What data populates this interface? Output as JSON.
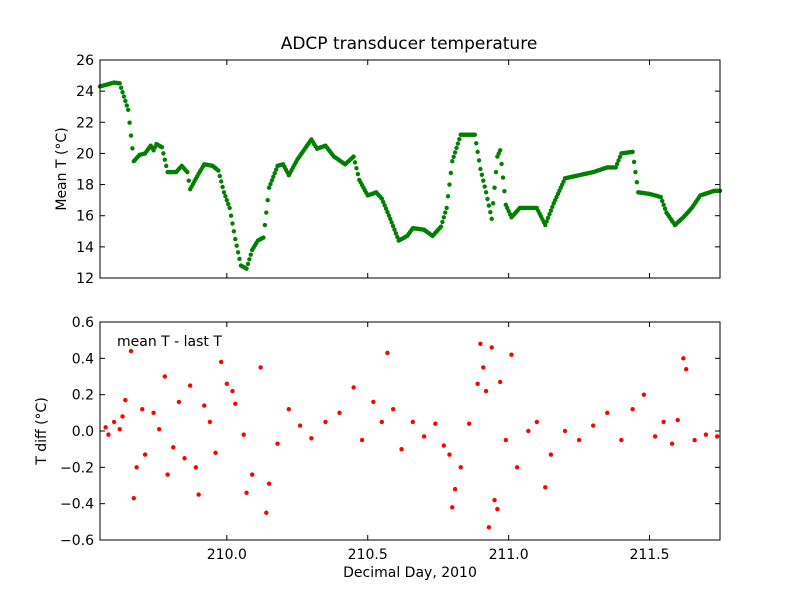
{
  "chart_data": [
    {
      "type": "scatter",
      "title": "ADCP transducer temperature",
      "ylabel": "Mean T (°C)",
      "xlabel": "",
      "xlim": [
        209.55,
        211.75
      ],
      "ylim": [
        12,
        26
      ],
      "yticks": [
        "12",
        "14",
        "16",
        "18",
        "20",
        "22",
        "24",
        "26"
      ],
      "ytick_values": [
        12,
        14,
        16,
        18,
        20,
        22,
        24,
        26
      ],
      "xtick_values": [
        210.0,
        210.5,
        211.0,
        211.5
      ],
      "grid": false,
      "marker_color": "#008000",
      "series": [
        {
          "anchors": [
            [
              209.55,
              24.3
            ],
            [
              209.6,
              24.55
            ],
            [
              209.62,
              24.5
            ],
            [
              209.65,
              22.8
            ],
            [
              209.67,
              19.5
            ],
            [
              209.69,
              19.9
            ],
            [
              209.71,
              20.0
            ],
            [
              209.73,
              20.5
            ],
            [
              209.74,
              20.2
            ],
            [
              209.75,
              20.6
            ],
            [
              209.77,
              20.4
            ],
            [
              209.79,
              18.8
            ],
            [
              209.82,
              18.8
            ],
            [
              209.84,
              19.2
            ],
            [
              209.86,
              18.8
            ],
            [
              209.87,
              17.7
            ],
            [
              209.9,
              18.7
            ],
            [
              209.92,
              19.3
            ],
            [
              209.95,
              19.2
            ],
            [
              209.97,
              18.9
            ],
            [
              209.99,
              17.5
            ],
            [
              210.01,
              16.5
            ],
            [
              210.03,
              14.5
            ],
            [
              210.05,
              12.8
            ],
            [
              210.07,
              12.6
            ],
            [
              210.09,
              13.8
            ],
            [
              210.11,
              14.4
            ],
            [
              210.13,
              14.6
            ],
            [
              210.15,
              17.8
            ],
            [
              210.18,
              19.2
            ],
            [
              210.2,
              19.3
            ],
            [
              210.22,
              18.6
            ],
            [
              210.25,
              19.6
            ],
            [
              210.3,
              20.9
            ],
            [
              210.32,
              20.3
            ],
            [
              210.35,
              20.5
            ],
            [
              210.38,
              19.8
            ],
            [
              210.42,
              19.3
            ],
            [
              210.45,
              19.8
            ],
            [
              210.47,
              18.3
            ],
            [
              210.5,
              17.3
            ],
            [
              210.53,
              17.5
            ],
            [
              210.55,
              17.1
            ],
            [
              210.58,
              15.8
            ],
            [
              210.61,
              14.4
            ],
            [
              210.64,
              14.7
            ],
            [
              210.66,
              15.2
            ],
            [
              210.7,
              15.1
            ],
            [
              210.73,
              14.7
            ],
            [
              210.76,
              15.3
            ],
            [
              210.78,
              16.5
            ],
            [
              210.8,
              19.5
            ],
            [
              210.83,
              21.2
            ],
            [
              210.88,
              21.2
            ],
            [
              210.9,
              19.0
            ],
            [
              210.92,
              17.5
            ],
            [
              210.94,
              15.8
            ],
            [
              210.96,
              19.8
            ],
            [
              210.97,
              20.2
            ],
            [
              210.99,
              16.7
            ],
            [
              211.01,
              15.9
            ],
            [
              211.04,
              16.5
            ],
            [
              211.1,
              16.5
            ],
            [
              211.13,
              15.4
            ],
            [
              211.16,
              16.8
            ],
            [
              211.2,
              18.4
            ],
            [
              211.25,
              18.6
            ],
            [
              211.3,
              18.8
            ],
            [
              211.35,
              19.1
            ],
            [
              211.38,
              19.1
            ],
            [
              211.4,
              20.0
            ],
            [
              211.44,
              20.1
            ],
            [
              211.46,
              17.5
            ],
            [
              211.5,
              17.4
            ],
            [
              211.52,
              17.3
            ],
            [
              211.54,
              17.2
            ],
            [
              211.56,
              16.2
            ],
            [
              211.59,
              15.4
            ],
            [
              211.62,
              15.9
            ],
            [
              211.65,
              16.5
            ],
            [
              211.68,
              17.3
            ],
            [
              211.73,
              17.6
            ],
            [
              211.75,
              17.6
            ]
          ]
        }
      ]
    },
    {
      "type": "scatter",
      "title": "",
      "ylabel": "T diff (°C)",
      "xlabel": "Decimal Day, 2010",
      "annotation": "mean T - last T",
      "xlim": [
        209.55,
        211.75
      ],
      "ylim": [
        -0.6,
        0.6
      ],
      "yticks": [
        "−0.6",
        "−0.4",
        "−0.2",
        "0.0",
        "0.2",
        "0.4",
        "0.6"
      ],
      "ytick_values": [
        -0.6,
        -0.4,
        -0.2,
        0.0,
        0.2,
        0.4,
        0.6
      ],
      "xticks": [
        "210.0",
        "210.5",
        "211.0",
        "211.5"
      ],
      "xtick_values": [
        210.0,
        210.5,
        211.0,
        211.5
      ],
      "grid": false,
      "marker_color": "#ff0000",
      "series": [
        {
          "points": [
            [
              209.57,
              0.02
            ],
            [
              209.58,
              -0.02
            ],
            [
              209.6,
              0.05
            ],
            [
              209.62,
              0.01
            ],
            [
              209.63,
              0.08
            ],
            [
              209.64,
              0.17
            ],
            [
              209.66,
              0.44
            ],
            [
              209.67,
              -0.37
            ],
            [
              209.68,
              -0.2
            ],
            [
              209.7,
              0.12
            ],
            [
              209.71,
              -0.13
            ],
            [
              209.74,
              0.1
            ],
            [
              209.76,
              0.01
            ],
            [
              209.78,
              0.3
            ],
            [
              209.79,
              -0.24
            ],
            [
              209.81,
              -0.09
            ],
            [
              209.83,
              0.16
            ],
            [
              209.85,
              -0.15
            ],
            [
              209.87,
              0.25
            ],
            [
              209.89,
              -0.2
            ],
            [
              209.9,
              -0.35
            ],
            [
              209.92,
              0.14
            ],
            [
              209.94,
              0.05
            ],
            [
              209.96,
              -0.12
            ],
            [
              209.98,
              0.38
            ],
            [
              210.0,
              0.26
            ],
            [
              210.02,
              0.22
            ],
            [
              210.03,
              0.15
            ],
            [
              210.06,
              -0.02
            ],
            [
              210.07,
              -0.34
            ],
            [
              210.09,
              -0.24
            ],
            [
              210.12,
              0.35
            ],
            [
              210.14,
              -0.45
            ],
            [
              210.15,
              -0.29
            ],
            [
              210.18,
              -0.07
            ],
            [
              210.22,
              0.12
            ],
            [
              210.26,
              0.03
            ],
            [
              210.3,
              -0.04
            ],
            [
              210.35,
              0.05
            ],
            [
              210.4,
              0.1
            ],
            [
              210.45,
              0.24
            ],
            [
              210.48,
              -0.05
            ],
            [
              210.52,
              0.16
            ],
            [
              210.55,
              0.05
            ],
            [
              210.57,
              0.43
            ],
            [
              210.59,
              0.12
            ],
            [
              210.62,
              -0.1
            ],
            [
              210.66,
              0.05
            ],
            [
              210.7,
              -0.03
            ],
            [
              210.74,
              0.04
            ],
            [
              210.77,
              -0.08
            ],
            [
              210.79,
              -0.13
            ],
            [
              210.8,
              -0.42
            ],
            [
              210.81,
              -0.32
            ],
            [
              210.83,
              -0.2
            ],
            [
              210.86,
              0.04
            ],
            [
              210.89,
              0.26
            ],
            [
              210.9,
              0.48
            ],
            [
              210.91,
              0.35
            ],
            [
              210.92,
              0.22
            ],
            [
              210.93,
              -0.53
            ],
            [
              210.94,
              0.46
            ],
            [
              210.95,
              -0.38
            ],
            [
              210.96,
              -0.43
            ],
            [
              210.97,
              0.27
            ],
            [
              210.99,
              -0.05
            ],
            [
              211.01,
              0.42
            ],
            [
              211.03,
              -0.2
            ],
            [
              211.07,
              0.0
            ],
            [
              211.1,
              0.05
            ],
            [
              211.13,
              -0.31
            ],
            [
              211.15,
              -0.13
            ],
            [
              211.2,
              0.0
            ],
            [
              211.25,
              -0.05
            ],
            [
              211.3,
              0.03
            ],
            [
              211.35,
              0.1
            ],
            [
              211.4,
              -0.05
            ],
            [
              211.44,
              0.12
            ],
            [
              211.48,
              0.2
            ],
            [
              211.52,
              -0.03
            ],
            [
              211.55,
              0.05
            ],
            [
              211.58,
              -0.07
            ],
            [
              211.6,
              0.06
            ],
            [
              211.62,
              0.4
            ],
            [
              211.63,
              0.34
            ],
            [
              211.66,
              -0.05
            ],
            [
              211.7,
              -0.02
            ],
            [
              211.74,
              -0.03
            ]
          ]
        }
      ]
    }
  ]
}
